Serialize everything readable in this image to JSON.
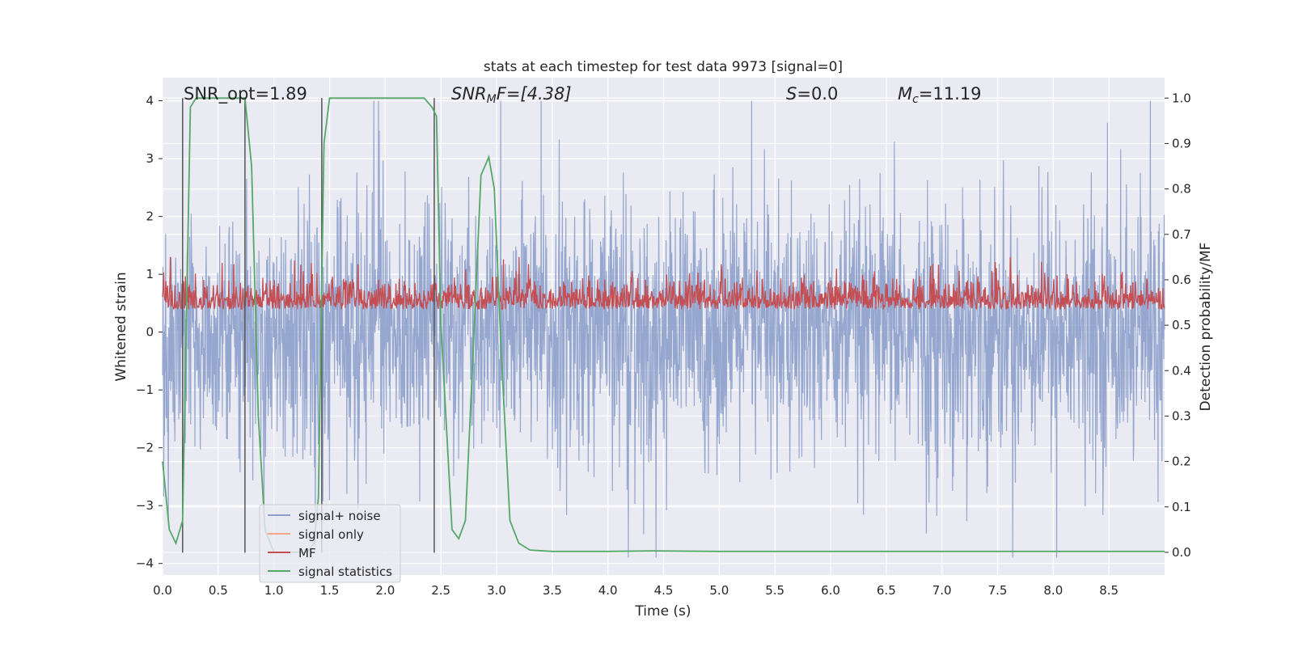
{
  "chart_data": {
    "type": "line",
    "title": "stats at each timestep for test data 9973 [signal=0]",
    "xlabel": "Time (s)",
    "ylabel": "Whitened strain",
    "ylabel_right": "Detection probability/MF",
    "xlim": [
      0.0,
      9.0
    ],
    "ylim": [
      -4.2,
      4.4
    ],
    "ylim_right": [
      -0.05,
      1.045
    ],
    "xticks": [
      0.0,
      0.5,
      1.0,
      1.5,
      2.0,
      2.5,
      3.0,
      3.5,
      4.0,
      4.5,
      5.0,
      5.5,
      6.0,
      6.5,
      7.0,
      7.5,
      8.0,
      8.5
    ],
    "xtick_labels": [
      "0.0",
      "0.5",
      "1.0",
      "1.5",
      "2.0",
      "2.5",
      "3.0",
      "3.5",
      "4.0",
      "4.5",
      "5.0",
      "5.5",
      "6.0",
      "6.5",
      "7.0",
      "7.5",
      "8.0",
      "8.5"
    ],
    "yticks": [
      -4,
      -3,
      -2,
      -1,
      0,
      1,
      2,
      3,
      4
    ],
    "ytick_labels": [
      "−4",
      "−3",
      "−2",
      "−1",
      "0",
      "1",
      "2",
      "3",
      "4"
    ],
    "yticks_right": [
      0.0,
      0.1,
      0.2,
      0.3,
      0.4,
      0.5,
      0.6,
      0.7,
      0.8,
      0.9,
      1.0
    ],
    "ytick_labels_right": [
      "0.0",
      "0.1",
      "0.2",
      "0.3",
      "0.4",
      "0.5",
      "0.6",
      "0.7",
      "0.8",
      "0.9",
      "1.0"
    ],
    "grid": true,
    "legend_position": "lower-left",
    "annotations": {
      "snr_opt": "SNR_opt=1.89",
      "snr_mf_main": "SNR",
      "snr_mf_sub": "M",
      "snr_mf_rest": "F=[4.38]",
      "s_main": "S",
      "s_rest": "=0.0",
      "mc_main": "M",
      "mc_sub": "c",
      "mc_rest": "=11.19"
    },
    "vertical_lines_x": [
      0.18,
      0.74,
      1.43,
      2.44
    ],
    "series": [
      {
        "name": "signal+ noise",
        "color": "#8da0cb",
        "description_values": "dense whitened strain noise, roughly within [-3.9, 4.0]",
        "envelope": {
          "mean_abs": 1.7,
          "max": 4.0,
          "min": -3.9
        }
      },
      {
        "name": "signal only",
        "color": "#f0a78a",
        "values": []
      },
      {
        "name": "MF",
        "color": "#c44e52",
        "axis": "right",
        "envelope": {
          "low": 0.5,
          "typical_high": 0.62,
          "max": 0.65
        }
      },
      {
        "name": "signal statistics",
        "color": "#55a868",
        "axis": "right",
        "x": [
          0.0,
          0.06,
          0.12,
          0.18,
          0.25,
          0.3,
          0.5,
          0.7,
          0.74,
          0.8,
          0.86,
          0.92,
          1.0,
          1.1,
          1.2,
          1.3,
          1.36,
          1.4,
          1.45,
          1.5,
          1.6,
          2.0,
          2.35,
          2.42,
          2.46,
          2.5,
          2.6,
          2.66,
          2.72,
          2.8,
          2.86,
          2.93,
          2.98,
          3.04,
          3.12,
          3.2,
          3.3,
          3.5,
          4.0,
          4.4,
          5.0,
          6.0,
          7.0,
          8.0,
          9.0
        ],
        "y": [
          0.2,
          0.05,
          0.02,
          0.07,
          0.98,
          1.0,
          1.0,
          1.0,
          1.0,
          0.85,
          0.3,
          0.05,
          0.0,
          0.0,
          0.0,
          0.0,
          0.02,
          0.12,
          0.9,
          1.0,
          1.0,
          1.0,
          1.0,
          0.98,
          0.96,
          0.5,
          0.05,
          0.03,
          0.07,
          0.5,
          0.83,
          0.87,
          0.8,
          0.45,
          0.07,
          0.02,
          0.005,
          0.002,
          0.002,
          0.003,
          0.002,
          0.002,
          0.002,
          0.002,
          0.002
        ]
      }
    ]
  }
}
